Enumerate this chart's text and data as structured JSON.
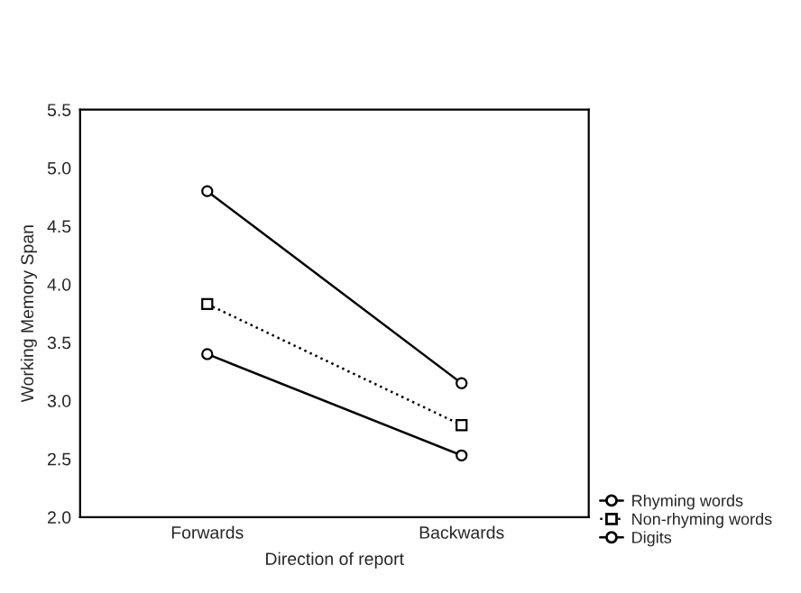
{
  "chart_data": {
    "type": "line",
    "xlabel": "Direction of report",
    "ylabel": "Working Memory Span",
    "categories": [
      "Forwards",
      "Backwards"
    ],
    "series": [
      {
        "name": "Rhyming words",
        "color": "#000000",
        "values": [
          3.4,
          2.53
        ],
        "marker": "circle",
        "line_style": "solid"
      },
      {
        "name": "Non-rhyming words",
        "color": "#000000",
        "values": [
          3.83,
          2.79
        ],
        "marker": "square",
        "line_style": "dotted"
      },
      {
        "name": "Digits",
        "color": "#000000",
        "values": [
          4.8,
          3.15
        ],
        "marker": "circle",
        "line_style": "solid"
      }
    ],
    "ylim": [
      2.0,
      5.5
    ],
    "yticks": [
      {
        "value": 2.0,
        "label": "2.0"
      },
      {
        "value": 2.5,
        "label": "2.5"
      },
      {
        "value": 3.0,
        "label": "3.0"
      },
      {
        "value": 3.5,
        "label": "3.5"
      },
      {
        "value": 4.0,
        "label": "4.0"
      },
      {
        "value": 4.5,
        "label": "4.5"
      },
      {
        "value": 5.0,
        "label": "5.0"
      },
      {
        "value": 5.5,
        "label": "5.5"
      }
    ],
    "legend": "right",
    "grid": false
  }
}
